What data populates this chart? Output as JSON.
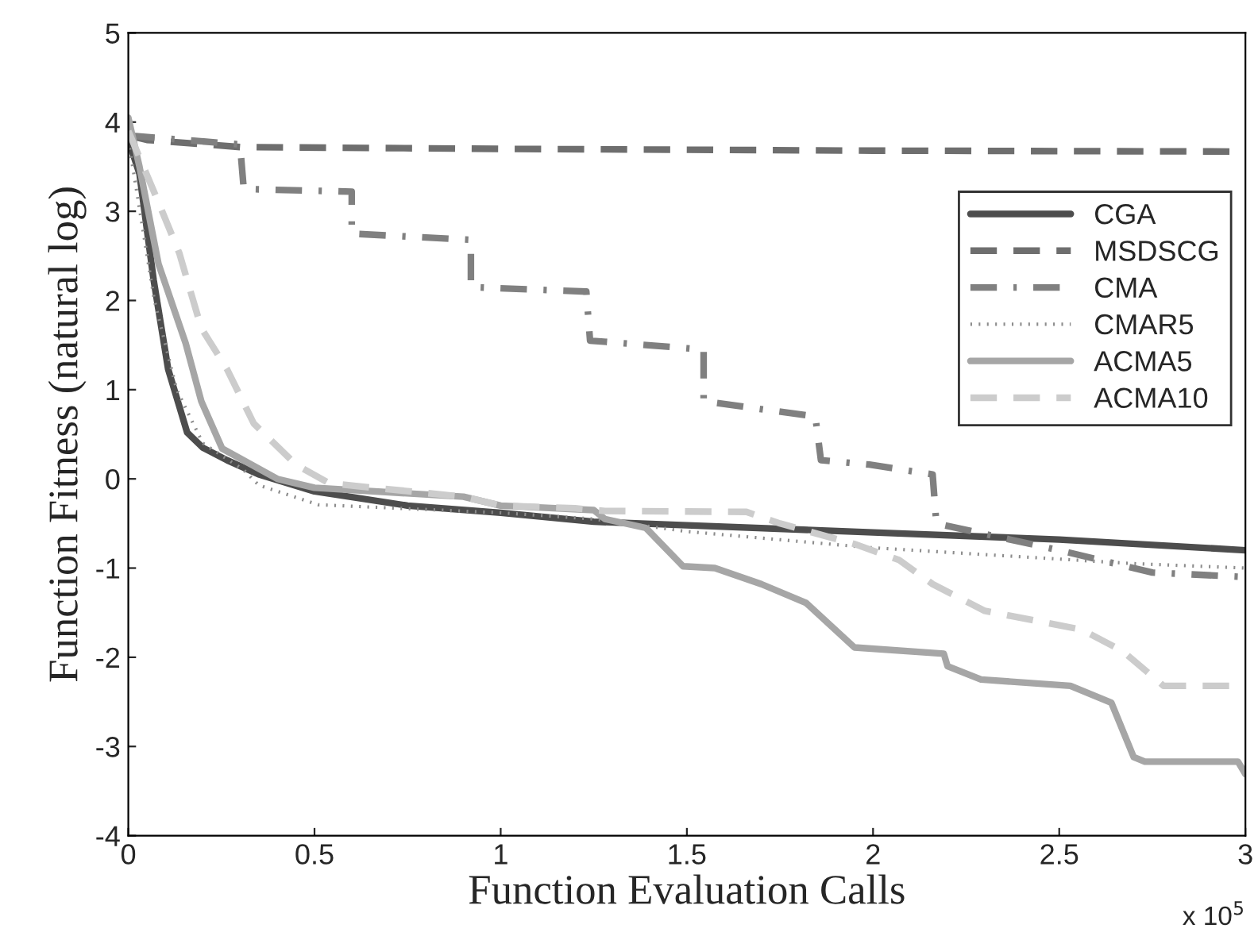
{
  "chart_data": {
    "type": "line",
    "xlabel": "Function Evaluation Calls",
    "ylabel": "Function Fitness (natural log)",
    "xlim": [
      0,
      3
    ],
    "ylim": [
      -4,
      5
    ],
    "xticks": [
      0,
      0.5,
      1,
      1.5,
      2,
      2.5,
      3
    ],
    "yticks": [
      -4,
      -3,
      -2,
      -1,
      0,
      1,
      2,
      3,
      4,
      5
    ],
    "annotations": [
      "x 10$^{5}$"
    ],
    "grid": false,
    "legend": "top right",
    "series": [
      {
        "name": "CGA",
        "color": "#4d4d4d",
        "line_style": "solid",
        "x": [
          0,
          0.03,
          0.068,
          0.107,
          0.158,
          0.2,
          0.265,
          0.35,
          0.5,
          0.75,
          1.0,
          1.25,
          1.5,
          2.0,
          2.5,
          3.0
        ],
        "values": [
          3.8,
          3.42,
          2.23,
          1.23,
          0.52,
          0.35,
          0.21,
          0.05,
          -0.14,
          -0.3,
          -0.38,
          -0.48,
          -0.52,
          -0.6,
          -0.68,
          -0.8
        ]
      },
      {
        "name": "MSDSCG",
        "color": "#6e6e6e",
        "line_style": "dashed",
        "x": [
          0,
          0.05,
          0.3,
          1.0,
          2.0,
          3.0
        ],
        "values": [
          3.85,
          3.8,
          3.72,
          3.7,
          3.68,
          3.67
        ]
      },
      {
        "name": "CMA",
        "color": "#808080",
        "line_style": "dashdot",
        "x": [
          0,
          0.3,
          0.31,
          0.6,
          0.6,
          0.92,
          0.92,
          1.23,
          1.24,
          1.545,
          1.545,
          1.845,
          1.86,
          1.99,
          2.16,
          2.17,
          2.5,
          2.75,
          3.0
        ],
        "values": [
          3.85,
          3.75,
          3.25,
          3.22,
          2.75,
          2.68,
          2.15,
          2.1,
          1.55,
          1.45,
          0.87,
          0.7,
          0.21,
          0.16,
          0.05,
          -0.5,
          -0.8,
          -1.05,
          -1.1
        ]
      },
      {
        "name": "CMAR5",
        "color": "#8c8c8c",
        "line_style": "dotted",
        "x": [
          0,
          0.07,
          0.13,
          0.2,
          0.31,
          0.35,
          0.51,
          1.0,
          1.25,
          1.5,
          1.99,
          2.7,
          3.0
        ],
        "values": [
          3.8,
          2.0,
          1.0,
          0.4,
          0.1,
          -0.07,
          -0.29,
          -0.38,
          -0.45,
          -0.59,
          -0.77,
          -0.95,
          -1.0
        ]
      },
      {
        "name": "ACMA5",
        "color": "#a6a6a6",
        "line_style": "solid",
        "x": [
          0,
          0.03,
          0.081,
          0.154,
          0.196,
          0.252,
          0.4,
          0.5,
          0.9,
          1.0,
          1.25,
          1.28,
          1.39,
          1.49,
          1.575,
          1.7,
          1.82,
          1.95,
          2.19,
          2.2,
          2.29,
          2.53,
          2.64,
          2.7,
          2.73,
          2.98,
          3.0
        ],
        "values": [
          4.05,
          3.5,
          2.41,
          1.52,
          0.87,
          0.34,
          0.0,
          -0.1,
          -0.2,
          -0.3,
          -0.35,
          -0.45,
          -0.55,
          -0.98,
          -1.0,
          -1.18,
          -1.39,
          -1.89,
          -1.96,
          -2.1,
          -2.25,
          -2.32,
          -2.51,
          -3.12,
          -3.17,
          -3.17,
          -3.31
        ]
      },
      {
        "name": "ACMA10",
        "color": "#cccccc",
        "line_style": "dashed",
        "x": [
          0,
          0.081,
          0.137,
          0.196,
          0.265,
          0.337,
          0.45,
          0.48,
          0.54,
          0.9,
          1.0,
          1.2,
          1.28,
          1.66,
          1.75,
          1.95,
          2.07,
          2.16,
          2.3,
          2.56,
          2.67,
          2.78,
          3.0
        ],
        "values": [
          3.9,
          3.1,
          2.53,
          1.69,
          1.23,
          0.62,
          0.16,
          0.09,
          -0.05,
          -0.2,
          -0.3,
          -0.33,
          -0.36,
          -0.37,
          -0.5,
          -0.73,
          -0.91,
          -1.18,
          -1.48,
          -1.69,
          -1.93,
          -2.32,
          -2.32
        ]
      }
    ]
  }
}
